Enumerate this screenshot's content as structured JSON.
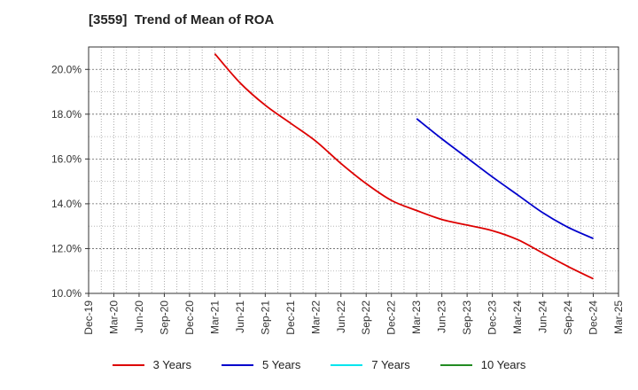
{
  "chart_data": {
    "type": "line",
    "title": "[3559]  Trend of Mean of ROA",
    "xlabel": "",
    "ylabel": "",
    "x_ticks": [
      "Dec-19",
      "Mar-20",
      "Jun-20",
      "Sep-20",
      "Dec-20",
      "Mar-21",
      "Jun-21",
      "Sep-21",
      "Dec-21",
      "Mar-22",
      "Jun-22",
      "Sep-22",
      "Dec-22",
      "Mar-23",
      "Jun-23",
      "Sep-23",
      "Dec-23",
      "Mar-24",
      "Jun-24",
      "Sep-24",
      "Dec-24",
      "Mar-25"
    ],
    "y_ticks": [
      "10.0%",
      "12.0%",
      "14.0%",
      "16.0%",
      "18.0%",
      "20.0%"
    ],
    "ylim": [
      10.0,
      21.0
    ],
    "grid": true,
    "legend_position": "bottom",
    "series": [
      {
        "name": "3 Years",
        "color": "#dd0000",
        "x": [
          "Mar-21",
          "Jun-21",
          "Sep-21",
          "Dec-21",
          "Mar-22",
          "Jun-22",
          "Sep-22",
          "Dec-22",
          "Mar-23",
          "Jun-23",
          "Sep-23",
          "Dec-23",
          "Mar-24",
          "Jun-24",
          "Sep-24",
          "Dec-24"
        ],
        "values": [
          20.7,
          19.4,
          18.4,
          17.6,
          16.8,
          15.8,
          14.9,
          14.15,
          13.7,
          13.3,
          13.05,
          12.8,
          12.4,
          11.8,
          11.2,
          10.65
        ]
      },
      {
        "name": "5 Years",
        "color": "#0000cc",
        "x": [
          "Mar-23",
          "Jun-23",
          "Sep-23",
          "Dec-23",
          "Mar-24",
          "Jun-24",
          "Sep-24",
          "Dec-24"
        ],
        "values": [
          17.8,
          16.9,
          16.05,
          15.2,
          14.4,
          13.6,
          12.95,
          12.45
        ]
      },
      {
        "name": "7 Years",
        "color": "#00e5ee",
        "x": [],
        "values": []
      },
      {
        "name": "10 Years",
        "color": "#228b22",
        "x": [],
        "values": []
      }
    ]
  }
}
